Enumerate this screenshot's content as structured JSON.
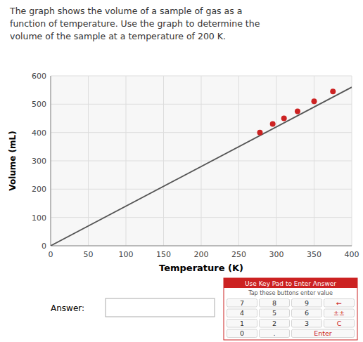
{
  "chart_data": {
    "type": "scatter",
    "title": [
      "The graph shows the volume of a sample of gas as a",
      "function of temperature. Use the graph to determine the",
      "volume of the sample at a temperature of 200 K."
    ],
    "x_label": "Temperature (K)",
    "y_label": "Volume (mL)",
    "xlim": [
      0,
      400
    ],
    "ylim": [
      0,
      600
    ],
    "xticks": [
      0,
      50,
      100,
      150,
      200,
      250,
      300,
      350,
      400
    ],
    "yticks": [
      0,
      100,
      200,
      300,
      400,
      500,
      600
    ],
    "grid": true,
    "series": [
      {
        "type": "line",
        "color": "#555555",
        "x": [
          0,
          400
        ],
        "values": [
          0,
          560
        ]
      },
      {
        "type": "scatter",
        "color": "#cc2222",
        "x": [
          278,
          295,
          310,
          328,
          350,
          375
        ],
        "values": [
          400,
          430,
          450,
          475,
          510,
          545
        ]
      }
    ],
    "annotations": [
      "Answer:",
      "Use Key Pad to Enter Answer",
      "Tap these buttons enter value",
      "7",
      "8",
      "9",
      "←",
      "4",
      "5",
      "6",
      "±±",
      "1",
      "2",
      "3",
      "C",
      "0",
      ".",
      "Enter"
    ]
  }
}
